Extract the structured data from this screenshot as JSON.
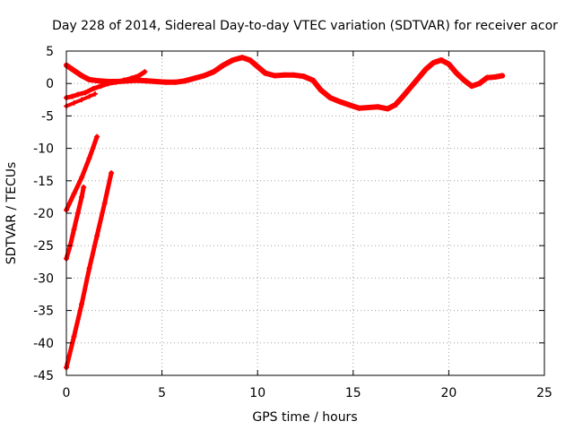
{
  "chart_data": {
    "type": "scatter",
    "title": "Day 228 of 2014, Sidereal Day-to-day VTEC variation (SDTVAR) for receiver acor",
    "xlabel": "GPS time / hours",
    "ylabel": "SDTVAR / TECUs",
    "xlim": [
      0,
      25
    ],
    "ylim": [
      -45,
      5
    ],
    "xticks": [
      0,
      5,
      10,
      15,
      20,
      25
    ],
    "yticks": [
      5,
      0,
      -5,
      -10,
      -15,
      -20,
      -25,
      -30,
      -35,
      -40,
      -45
    ],
    "grid": true,
    "series_color": "#ff0000",
    "series": [
      {
        "points": [
          [
            0.0,
            2.8
          ],
          [
            0.4,
            2.0
          ],
          [
            0.8,
            1.2
          ],
          [
            1.2,
            0.6
          ],
          [
            1.7,
            0.4
          ],
          [
            2.2,
            0.3
          ],
          [
            2.7,
            0.3
          ],
          [
            3.2,
            0.4
          ],
          [
            3.7,
            0.5
          ],
          [
            4.2,
            0.4
          ],
          [
            4.7,
            0.3
          ],
          [
            5.2,
            0.2
          ],
          [
            5.7,
            0.2
          ],
          [
            6.2,
            0.4
          ],
          [
            6.7,
            0.8
          ],
          [
            7.2,
            1.2
          ],
          [
            7.7,
            1.8
          ],
          [
            8.2,
            2.8
          ],
          [
            8.7,
            3.6
          ],
          [
            9.2,
            4.0
          ],
          [
            9.6,
            3.6
          ],
          [
            10.0,
            2.6
          ],
          [
            10.4,
            1.6
          ],
          [
            10.9,
            1.2
          ],
          [
            11.4,
            1.3
          ],
          [
            11.9,
            1.3
          ],
          [
            12.4,
            1.1
          ],
          [
            12.9,
            0.5
          ],
          [
            13.3,
            -1.0
          ],
          [
            13.8,
            -2.2
          ],
          [
            14.3,
            -2.8
          ],
          [
            14.8,
            -3.3
          ],
          [
            15.3,
            -3.8
          ],
          [
            15.8,
            -3.7
          ],
          [
            16.3,
            -3.6
          ],
          [
            16.8,
            -3.9
          ],
          [
            17.2,
            -3.3
          ],
          [
            17.6,
            -2.0
          ],
          [
            18.0,
            -0.6
          ],
          [
            18.4,
            0.8
          ],
          [
            18.8,
            2.2
          ],
          [
            19.2,
            3.2
          ],
          [
            19.6,
            3.6
          ],
          [
            20.0,
            3.0
          ],
          [
            20.4,
            1.6
          ],
          [
            20.8,
            0.5
          ],
          [
            21.2,
            -0.4
          ],
          [
            21.6,
            0.0
          ],
          [
            22.0,
            0.9
          ],
          [
            22.4,
            1.0
          ],
          [
            22.8,
            1.2
          ]
        ],
        "width": 6
      },
      {
        "points": [
          [
            0.0,
            -2.2
          ],
          [
            0.3,
            -2.0
          ],
          [
            0.6,
            -1.7
          ],
          [
            1.0,
            -1.4
          ],
          [
            1.4,
            -0.8
          ],
          [
            1.8,
            -0.4
          ],
          [
            2.2,
            0.0
          ],
          [
            2.6,
            0.2
          ],
          [
            3.0,
            0.5
          ],
          [
            3.4,
            0.8
          ],
          [
            3.8,
            1.2
          ],
          [
            4.1,
            1.8
          ]
        ],
        "width": 5
      },
      {
        "points": [
          [
            0.0,
            -3.5
          ],
          [
            0.4,
            -3.0
          ],
          [
            0.8,
            -2.5
          ],
          [
            1.2,
            -2.0
          ],
          [
            1.5,
            -1.6
          ]
        ],
        "width": 4
      },
      {
        "points": [
          [
            0.0,
            -19.5
          ],
          [
            0.4,
            -17.0
          ],
          [
            0.8,
            -14.5
          ],
          [
            1.2,
            -11.5
          ],
          [
            1.6,
            -8.2
          ]
        ],
        "width": 5
      },
      {
        "points": [
          [
            0.0,
            -27.0
          ],
          [
            0.2,
            -25.0
          ],
          [
            0.4,
            -22.5
          ],
          [
            0.6,
            -20.0
          ],
          [
            0.8,
            -17.5
          ],
          [
            0.9,
            -16.0
          ]
        ],
        "width": 5
      },
      {
        "points": [
          [
            0.0,
            -43.8
          ],
          [
            0.4,
            -39.0
          ],
          [
            0.8,
            -34.0
          ],
          [
            1.2,
            -28.5
          ],
          [
            1.6,
            -23.5
          ],
          [
            2.0,
            -18.5
          ],
          [
            2.35,
            -13.8
          ]
        ],
        "width": 5
      }
    ]
  }
}
